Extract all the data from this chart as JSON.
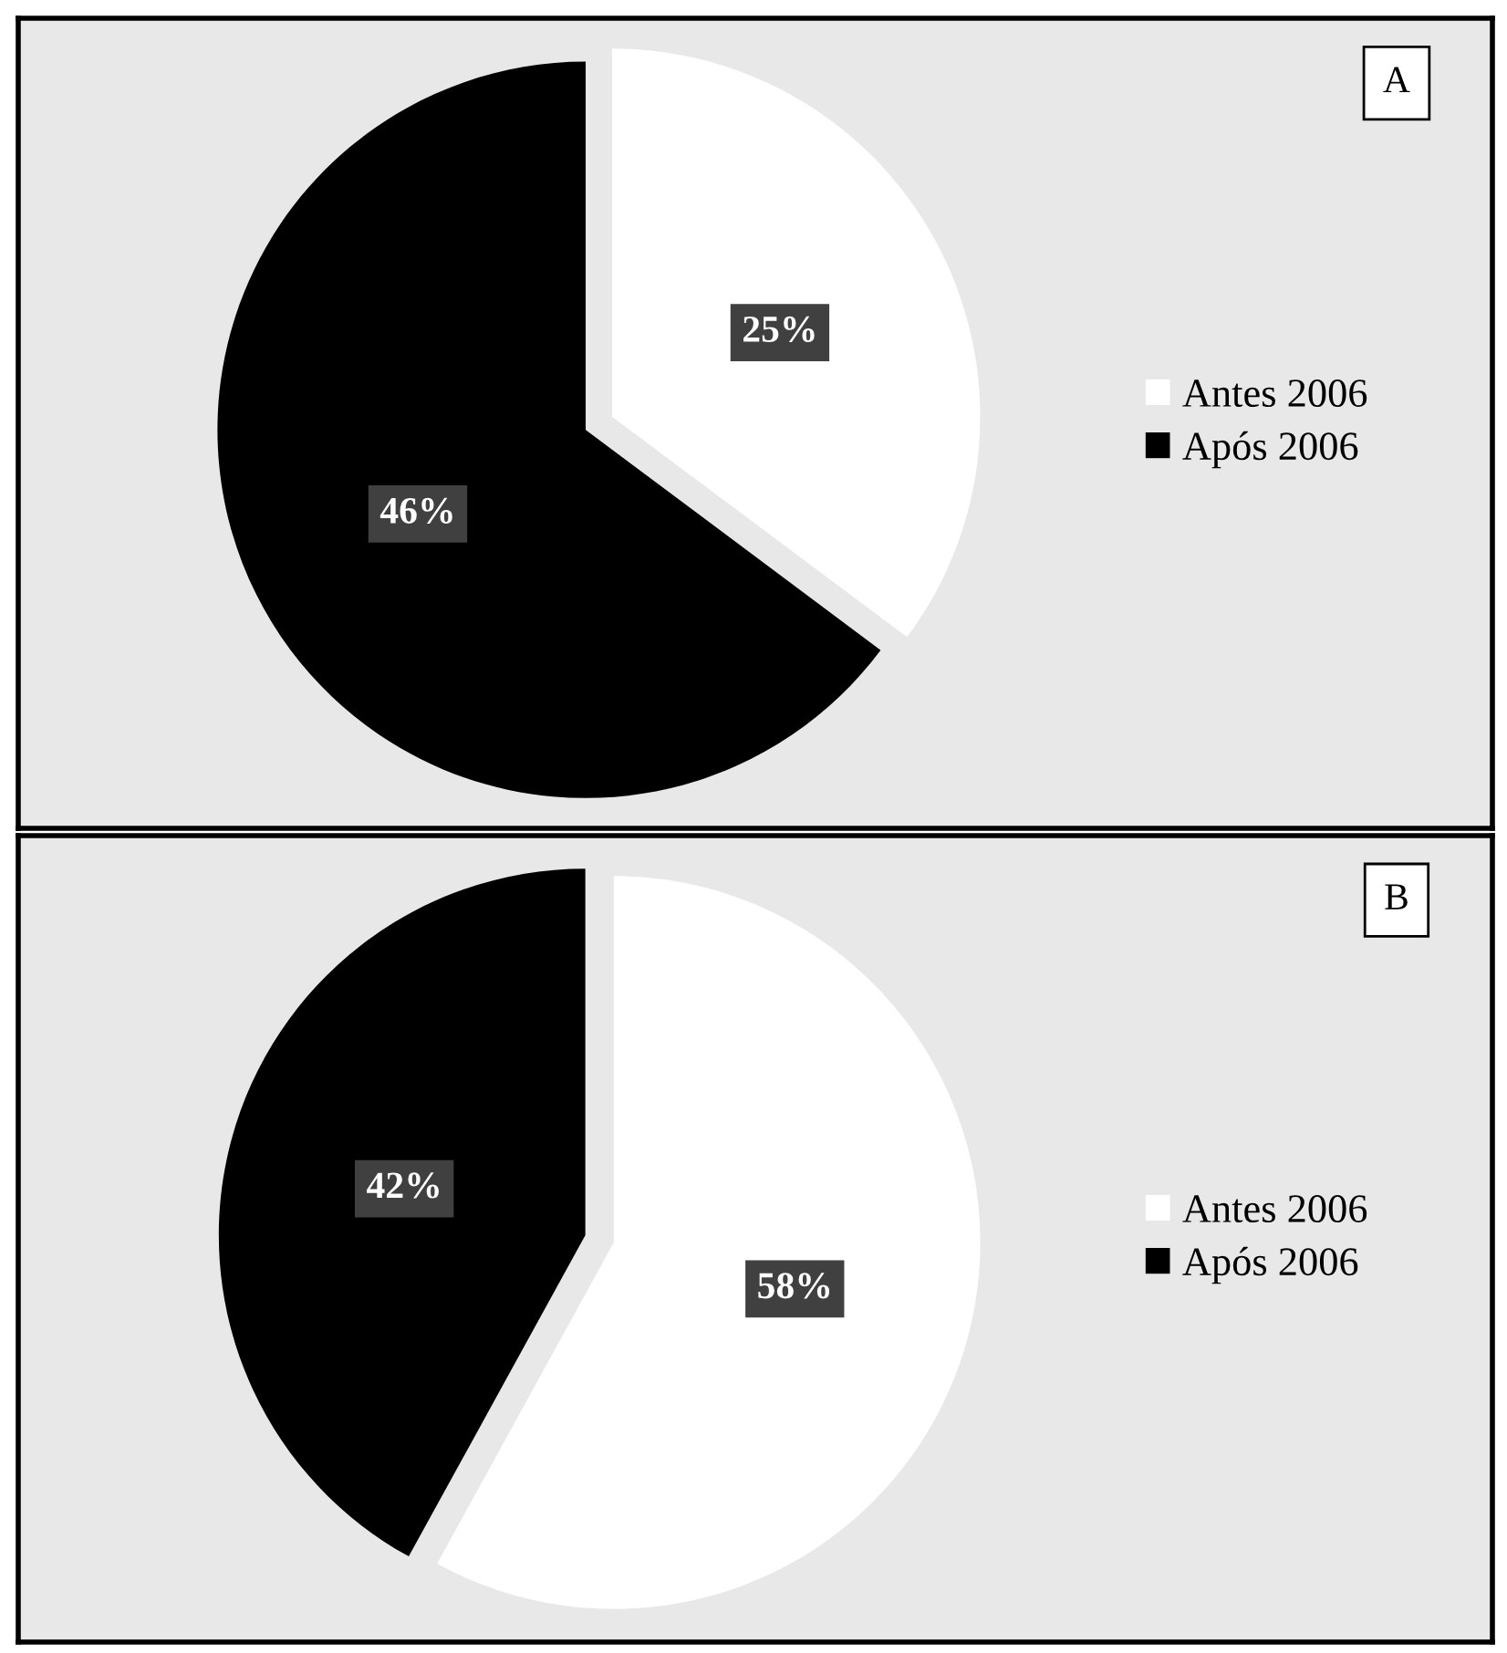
{
  "chart_data": [
    {
      "type": "pie",
      "title": "A",
      "categories": [
        "Antes 2006",
        "Após 2006"
      ],
      "values": [
        25,
        46
      ],
      "colors": [
        "#ffffff",
        "#000000"
      ],
      "value_labels": [
        "25%",
        "46%"
      ],
      "legend": "right"
    },
    {
      "type": "pie",
      "title": "B",
      "categories": [
        "Antes 2006",
        "Após 2006"
      ],
      "values": [
        58,
        42
      ],
      "colors": [
        "#ffffff",
        "#000000"
      ],
      "value_labels": [
        "58%",
        "42%"
      ],
      "legend": "right"
    }
  ]
}
